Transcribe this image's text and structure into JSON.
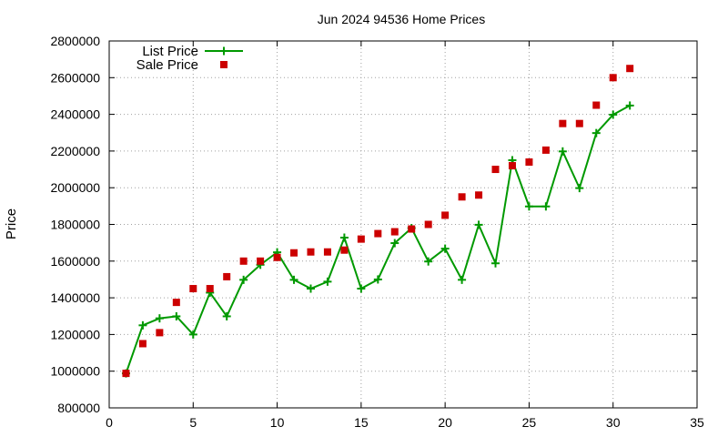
{
  "chart_data": {
    "type": "line",
    "title": "Jun 2024 94536 Home Prices",
    "xlabel": "",
    "ylabel": "Price",
    "xlim": [
      0,
      35
    ],
    "ylim": [
      800000,
      2800000
    ],
    "xticks": [
      "0",
      "5",
      "10",
      "15",
      "20",
      "25",
      "30",
      "35"
    ],
    "xtick_values": [
      0,
      5,
      10,
      15,
      20,
      25,
      30,
      35
    ],
    "yticks": [
      "800000",
      "1000000",
      "1200000",
      "1400000",
      "1600000",
      "1800000",
      "2000000",
      "2200000",
      "2400000",
      "2600000",
      "2800000"
    ],
    "ytick_values": [
      800000,
      1000000,
      1200000,
      1400000,
      1600000,
      1800000,
      2000000,
      2200000,
      2400000,
      2600000,
      2800000
    ],
    "grid": true,
    "legend_position": "top-left",
    "series": [
      {
        "name": "List Price",
        "style": "line-points",
        "marker": "plus",
        "color": "#009900",
        "x": [
          1,
          2,
          3,
          4,
          5,
          6,
          7,
          8,
          9,
          10,
          11,
          12,
          13,
          14,
          15,
          16,
          17,
          18,
          19,
          20,
          21,
          22,
          23,
          24,
          25,
          26,
          27,
          28,
          29,
          30,
          31
        ],
        "values": [
          988000,
          1250000,
          1288000,
          1299000,
          1200000,
          1428000,
          1299000,
          1498000,
          1580000,
          1648000,
          1498000,
          1450000,
          1488000,
          1728000,
          1450000,
          1500000,
          1698000,
          1780000,
          1598000,
          1668000,
          1498000,
          1798000,
          1588000,
          2150000,
          1898000,
          1898000,
          2198000,
          1998000,
          2298000,
          2398000,
          2448000
        ]
      },
      {
        "name": "Sale Price",
        "style": "points",
        "marker": "square",
        "color": "#cc0000",
        "x": [
          1,
          2,
          3,
          4,
          5,
          6,
          7,
          8,
          9,
          10,
          11,
          12,
          13,
          14,
          15,
          16,
          17,
          18,
          19,
          20,
          21,
          22,
          23,
          24,
          25,
          26,
          27,
          28,
          29,
          30,
          31
        ],
        "values": [
          988000,
          1150000,
          1210000,
          1375000,
          1450000,
          1450000,
          1515000,
          1600000,
          1600000,
          1620000,
          1645000,
          1650000,
          1650000,
          1660000,
          1720000,
          1750000,
          1760000,
          1775000,
          1800000,
          1850000,
          1950000,
          1960000,
          2100000,
          2120000,
          2140000,
          2205000,
          2350000,
          2350000,
          2450000,
          2600000,
          2650000
        ]
      }
    ]
  }
}
